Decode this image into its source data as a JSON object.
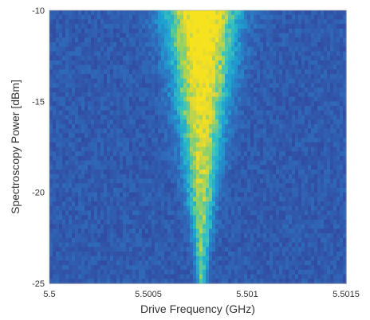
{
  "chart_data": {
    "type": "heatmap",
    "title": "",
    "xlabel": "Drive Frequency (GHz)",
    "ylabel": "Spectroscopy Power [dBm]",
    "xlim": [
      5.5,
      5.5015
    ],
    "ylim": [
      -25,
      -10
    ],
    "x_ticks": [
      "5.5",
      "5.5005",
      "5.501",
      "5.5015"
    ],
    "y_ticks": [
      "-10",
      "-15",
      "-20",
      "-25"
    ],
    "colormap": [
      "#30318f",
      "#3151a5",
      "#2f6fbe",
      "#1e9fd0",
      "#35c1c0",
      "#8fd06a",
      "#e2d833",
      "#f6e21f"
    ],
    "resonance_x": 5.50077,
    "resonance_width_at_top": 0.00022,
    "resonance_width_at_bottom": 1e-05,
    "grid": false,
    "legend": "none"
  }
}
